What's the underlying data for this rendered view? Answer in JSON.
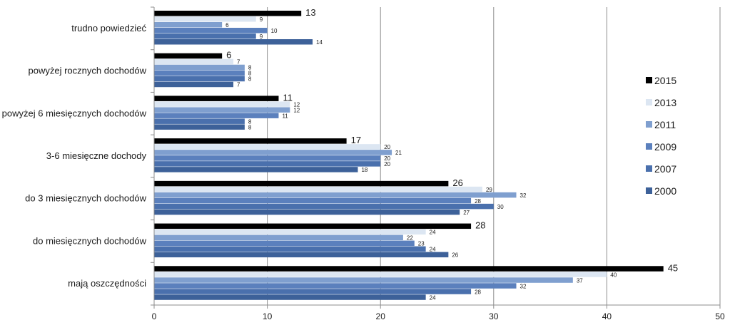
{
  "chart_data": {
    "type": "bar",
    "orientation": "horizontal",
    "categories": [
      "trudno powiedzieć",
      "powyżej rocznych dochodów",
      "powyżej 6 miesięcznych dochodów",
      "3-6 miesięczne dochody",
      "do 3 miesięcznych dochodów",
      "do miesięcznych dochodów",
      "mają oszczędności"
    ],
    "series": [
      {
        "name": "2015",
        "color": "#000000",
        "values": [
          13,
          6,
          11,
          17,
          26,
          28,
          45
        ]
      },
      {
        "name": "2013",
        "color": "#dce6f2",
        "values": [
          9,
          7,
          12,
          20,
          29,
          24,
          40
        ]
      },
      {
        "name": "2011",
        "color": "#7f9fcf",
        "values": [
          6,
          8,
          12,
          21,
          32,
          22,
          37
        ]
      },
      {
        "name": "2009",
        "color": "#5b80bd",
        "values": [
          10,
          8,
          11,
          20,
          28,
          23,
          32
        ]
      },
      {
        "name": "2007",
        "color": "#4a70ad",
        "values": [
          9,
          8,
          8,
          20,
          30,
          24,
          28
        ]
      },
      {
        "name": "2000",
        "color": "#3d6199",
        "values": [
          14,
          7,
          8,
          18,
          27,
          26,
          24
        ]
      }
    ],
    "xlim": [
      0,
      50
    ],
    "xticks": [
      0,
      10,
      20,
      30,
      40,
      50
    ],
    "grid": "vertical",
    "legend": "right",
    "title": "",
    "xlabel": "",
    "ylabel": ""
  }
}
